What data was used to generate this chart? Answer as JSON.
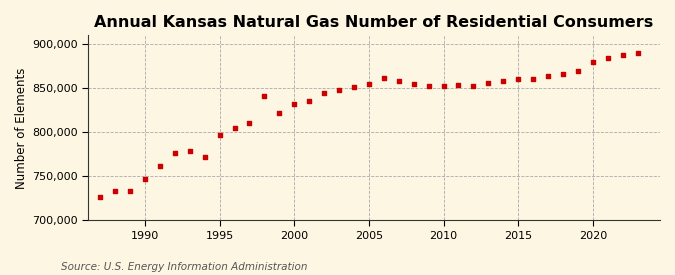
{
  "title": "Annual Kansas Natural Gas Number of Residential Consumers",
  "ylabel": "Number of Elements",
  "source": "Source: U.S. Energy Information Administration",
  "background_color": "#fdf6e3",
  "plot_background_color": "#fdf6e3",
  "marker_color": "#cc0000",
  "grid_color": "#aaaaaa",
  "years": [
    1987,
    1988,
    1989,
    1990,
    1991,
    1992,
    1993,
    1994,
    1995,
    1996,
    1997,
    1998,
    1999,
    2000,
    2001,
    2002,
    2003,
    2004,
    2005,
    2006,
    2007,
    2008,
    2009,
    2010,
    2011,
    2012,
    2013,
    2014,
    2015,
    2016,
    2017,
    2018,
    2019,
    2020,
    2021,
    2022,
    2023
  ],
  "values": [
    727000,
    733000,
    733000,
    747000,
    762000,
    777000,
    779000,
    772000,
    797000,
    805000,
    810000,
    841000,
    822000,
    832000,
    836000,
    844000,
    848000,
    851000,
    855000,
    862000,
    858000,
    855000,
    852000,
    852000,
    854000,
    853000,
    856000,
    858000,
    860000,
    861000,
    864000,
    866000,
    870000,
    880000,
    884000,
    888000,
    890000
  ],
  "ylim": [
    700000,
    910000
  ],
  "yticks": [
    700000,
    750000,
    800000,
    850000,
    900000
  ],
  "xticks": [
    1990,
    1995,
    2000,
    2005,
    2010,
    2015,
    2020
  ],
  "xlim": [
    1986.2,
    2024.5
  ],
  "title_fontsize": 11.5,
  "label_fontsize": 8.5,
  "tick_fontsize": 8,
  "source_fontsize": 7.5
}
